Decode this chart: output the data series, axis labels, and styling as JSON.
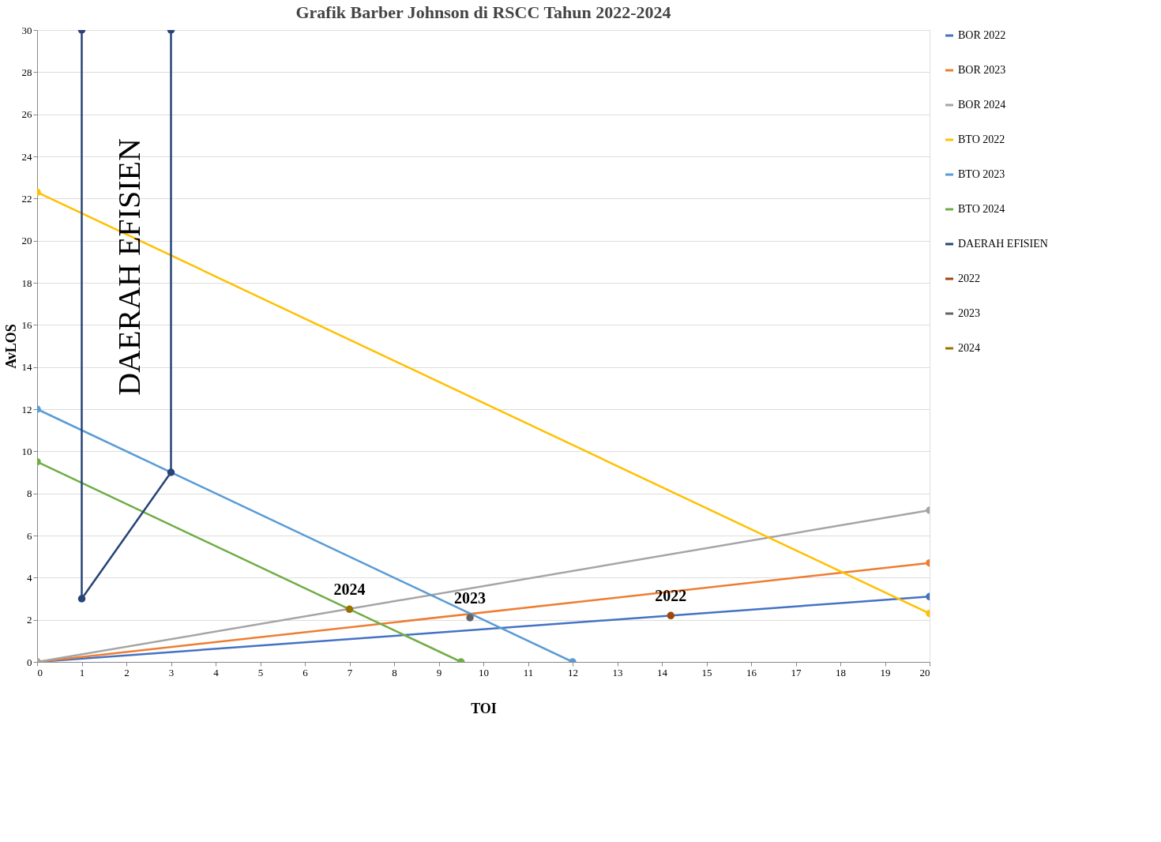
{
  "chart_data": {
    "type": "line",
    "title": "Grafik Barber Johnson di RSCC Tahun 2022-2024",
    "xlabel": "TOI",
    "ylabel": "AvLOS",
    "series": [
      {
        "name": "BOR 2022",
        "color": "#4472c4",
        "x": [
          0,
          20
        ],
        "values": [
          0,
          3.1
        ]
      },
      {
        "name": "BOR 2023",
        "color": "#ed7d31",
        "x": [
          0,
          20
        ],
        "values": [
          0,
          4.7
        ]
      },
      {
        "name": "BOR 2024",
        "color": "#a5a5a5",
        "x": [
          0,
          20
        ],
        "values": [
          0,
          7.2
        ]
      },
      {
        "name": "BTO 2022",
        "color": "#ffc000",
        "x": [
          0,
          20
        ],
        "values": [
          22.3,
          2.3
        ]
      },
      {
        "name": "BTO 2023",
        "color": "#5b9bd5",
        "x": [
          0,
          12
        ],
        "values": [
          12,
          0
        ]
      },
      {
        "name": "BTO 2024",
        "color": "#70ad47",
        "x": [
          0,
          9.5
        ],
        "values": [
          9.5,
          0
        ]
      },
      {
        "name": "DAERAH EFISIEN",
        "color": "#264478",
        "x": [
          1,
          1,
          3,
          3
        ],
        "values": [
          30,
          3,
          9,
          30
        ]
      },
      {
        "name": "2022",
        "color": "#9e480e",
        "x": [
          14.2
        ],
        "values": [
          2.2
        ]
      },
      {
        "name": "2023",
        "color": "#636363",
        "x": [
          9.7
        ],
        "values": [
          2.1
        ]
      },
      {
        "name": "2024",
        "color": "#997300",
        "x": [
          7
        ],
        "values": [
          2.5
        ]
      }
    ],
    "annotations": [
      "DAERAH EFISIEN",
      {
        "text": "2024",
        "x": 7,
        "y": 2.5
      },
      {
        "text": "2023",
        "x": 9.7,
        "y": 2.1
      },
      {
        "text": "2022",
        "x": 14.2,
        "y": 2.2
      }
    ],
    "xlim": [
      0,
      20
    ],
    "xticks": [
      0,
      1,
      2,
      3,
      4,
      5,
      6,
      7,
      8,
      9,
      10,
      11,
      12,
      13,
      14,
      15,
      16,
      17,
      18,
      19,
      20
    ],
    "ylim": [
      0,
      30
    ],
    "yticks": [
      0,
      2,
      4,
      6,
      8,
      10,
      12,
      14,
      16,
      18,
      20,
      22,
      24,
      26,
      28,
      30
    ],
    "grid": "y",
    "legend": "right",
    "marker": "circle",
    "line_style": "solid"
  }
}
